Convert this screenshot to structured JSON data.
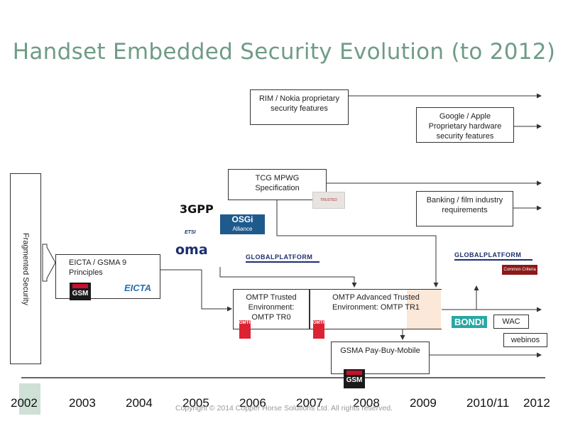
{
  "title": "Handset Embedded Security Evolution (to 2012)",
  "fragmented": "Fragmented Security",
  "boxes": {
    "rim": [
      "RIM / Nokia proprietary",
      "security features"
    ],
    "google": [
      "Google / Apple",
      "Proprietary hardware",
      "security features"
    ],
    "tcg": [
      "TCG MPWG",
      "Specification"
    ],
    "banking": [
      "Banking / film industry",
      "requirements"
    ],
    "eicta": "EICTA / GSMA 9 Principles",
    "omtp_tr0": [
      "OMTP Trusted",
      "Environment:",
      "OMTP TR0"
    ],
    "omtp_tr1": [
      "OMTP Advanced Trusted",
      "Environment: OMTP TR1"
    ],
    "gsma": "GSMA Pay-Buy-Mobile",
    "wac": "WAC",
    "webinos": "webinos"
  },
  "logos": {
    "gsm": "GSM",
    "eicta": "EICTA",
    "threegpp": "3GPP",
    "etsi": "ETSI",
    "oma": "oma",
    "osgi": "OSGi",
    "osgi_sub": "Alliance",
    "globalplatform": "GLOBALPLATFORM",
    "bondi": "BONDI",
    "common_criteria": "Common Criteria",
    "omtp": "OMTP",
    "trusted": "TRUSTED"
  },
  "years": [
    "2002",
    "2003",
    "2004",
    "2005",
    "2006",
    "2007",
    "2008",
    "2009",
    "2010/11",
    "2012"
  ],
  "copyright": "Copyright © 2014 Copper Horse Solutions Ltd. All rights reserved."
}
